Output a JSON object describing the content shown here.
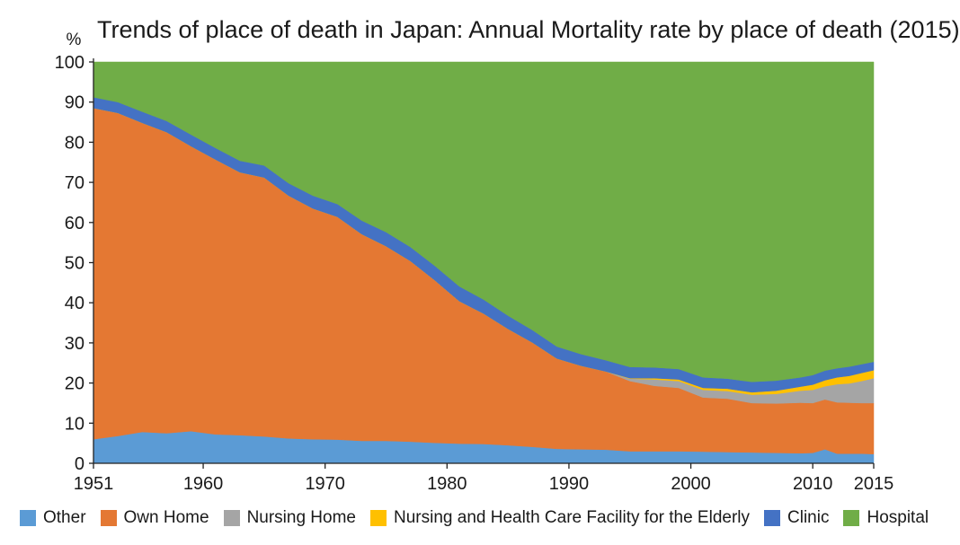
{
  "chart_data": {
    "type": "area",
    "stacked": true,
    "title": "Trends of place of death in Japan: Annual Mortality rate by place of death (2015)",
    "ylabel": "%",
    "xlabel": "",
    "ylim": [
      0,
      100
    ],
    "xlim": [
      1951,
      2015
    ],
    "yticks": [
      "0",
      "10",
      "20",
      "30",
      "40",
      "50",
      "60",
      "70",
      "80",
      "90",
      "100"
    ],
    "xticks": [
      "1951",
      "1960",
      "1970",
      "1980",
      "1990",
      "2000",
      "2010",
      "2015"
    ],
    "grid": false,
    "legend_position": "bottom",
    "x": [
      1951,
      1953,
      1955,
      1957,
      1959,
      1961,
      1963,
      1965,
      1967,
      1969,
      1971,
      1973,
      1975,
      1977,
      1979,
      1981,
      1983,
      1985,
      1987,
      1989,
      1991,
      1993,
      1995,
      1997,
      1999,
      2001,
      2003,
      2005,
      2007,
      2009,
      2010,
      2011,
      2012,
      2013,
      2014,
      2015
    ],
    "series": [
      {
        "name": "Other",
        "color": "#5B9BD5",
        "values": [
          6,
          6.8,
          7.8,
          7.5,
          8,
          7.2,
          7,
          6.7,
          6.2,
          6.0,
          5.9,
          5.6,
          5.6,
          5.4,
          5.1,
          4.9,
          4.8,
          4.5,
          4.1,
          3.6,
          3.5,
          3.4,
          3.0,
          3.0,
          3.0,
          2.9,
          2.8,
          2.7,
          2.6,
          2.5,
          2.6,
          3.5,
          2.4,
          2.4,
          2.4,
          2.3
        ]
      },
      {
        "name": "Own Home",
        "color": "#E47833",
        "values": [
          82.5,
          80.5,
          77,
          75,
          71,
          68.5,
          65.5,
          64.5,
          60.5,
          57.5,
          55.5,
          51.5,
          48.5,
          45,
          40.5,
          35.5,
          32.5,
          29.0,
          26.0,
          22.5,
          20.8,
          19.5,
          17.5,
          16.3,
          15.8,
          13.5,
          13.3,
          12.3,
          12.3,
          12.6,
          12.4,
          12.4,
          12.8,
          12.7,
          12.6,
          12.7
        ]
      },
      {
        "name": "Nursing Home",
        "color": "#A5A5A5",
        "values": [
          0,
          0,
          0,
          0,
          0,
          0,
          0,
          0,
          0,
          0,
          0,
          0,
          0,
          0,
          0,
          0,
          0,
          0,
          0,
          0,
          0,
          0,
          0.6,
          1.6,
          1.7,
          1.9,
          1.9,
          2.1,
          2.4,
          3.0,
          3.3,
          3.3,
          4.5,
          4.8,
          5.5,
          6.2
        ]
      },
      {
        "name": "Nursing and Health Care Facility for the Elderly",
        "color": "#FFC000",
        "values": [
          0,
          0,
          0,
          0,
          0,
          0,
          0,
          0,
          0,
          0,
          0,
          0,
          0,
          0,
          0,
          0,
          0,
          0,
          0,
          0,
          0,
          0,
          0.1,
          0.3,
          0.4,
          0.5,
          0.6,
          0.6,
          0.8,
          1.0,
          1.3,
          1.5,
          1.7,
          1.9,
          2.0,
          2.0
        ]
      },
      {
        "name": "Clinic",
        "color": "#4472C4",
        "values": [
          2.7,
          2.7,
          2.8,
          2.8,
          2.9,
          2.9,
          2.9,
          3.0,
          3.1,
          3.2,
          3.2,
          3.4,
          3.5,
          3.5,
          3.6,
          3.7,
          3.5,
          3.3,
          3.1,
          3.0,
          2.9,
          2.8,
          2.8,
          2.7,
          2.6,
          2.6,
          2.5,
          2.6,
          2.5,
          2.3,
          2.4,
          2.4,
          2.3,
          2.3,
          2.2,
          2.1
        ]
      },
      {
        "name": "Hospital",
        "color": "#70AD47",
        "values": [
          8.8,
          10.0,
          12.4,
          14.7,
          18.1,
          21.4,
          24.6,
          25.8,
          30.2,
          33.3,
          35.4,
          39.5,
          42.4,
          46.1,
          50.8,
          55.9,
          59.2,
          63.2,
          66.8,
          70.9,
          72.8,
          74.3,
          76.0,
          76.1,
          76.5,
          78.6,
          78.9,
          79.7,
          79.4,
          78.6,
          78.0,
          76.9,
          76.3,
          75.9,
          75.3,
          74.7
        ]
      }
    ]
  }
}
